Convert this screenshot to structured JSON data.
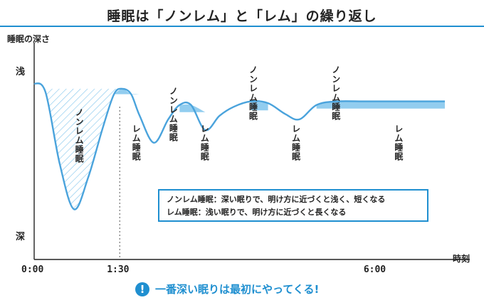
{
  "title": "睡眠は「ノンレム」と「レム」の繰り返し",
  "note": {
    "icon": "!",
    "text": "一番深い眠りは最初にやってくる!"
  },
  "legend": {
    "nonrem": "ノンレム睡眠：深い眠りで、明け方に近づくと浅く、短くなる",
    "rem": "レム睡眠：浅い眠りで、明け方に近づくと長くなる"
  },
  "colors": {
    "accent": "#1f8fd0",
    "rem_fill": "#7fc4ec",
    "curve": "#4aa3dc"
  },
  "chart_data": {
    "type": "line",
    "title": "睡眠は「ノンレム」と「レム」の繰り返し",
    "ylabel": "睡眠の深さ",
    "xlabel": "時刻",
    "y_top_label": "浅",
    "y_bottom_label": "深",
    "xticks": [
      {
        "label": "0:00",
        "hours": 0
      },
      {
        "label": "1:30",
        "hours": 1.5
      },
      {
        "label": "6:00",
        "hours": 6
      }
    ],
    "xlim": [
      0,
      7.2
    ],
    "ylim": [
      0,
      1
    ],
    "depth_curve": {
      "hours": [
        0,
        0.2,
        0.45,
        0.7,
        0.95,
        1.2,
        1.4,
        1.55,
        1.7,
        1.85,
        2.1,
        2.35,
        2.55,
        2.75,
        3.0,
        3.25,
        3.5,
        3.8,
        4.1,
        4.4,
        4.65,
        4.95,
        5.3,
        5.8,
        6.3,
        6.8,
        7.2
      ],
      "depth": [
        0.1,
        0.15,
        0.55,
        0.8,
        0.62,
        0.35,
        0.16,
        0.13,
        0.16,
        0.28,
        0.43,
        0.3,
        0.22,
        0.22,
        0.36,
        0.28,
        0.23,
        0.2,
        0.21,
        0.27,
        0.3,
        0.22,
        0.2,
        0.2,
        0.2,
        0.2,
        0.2
      ]
    },
    "annotations": [
      {
        "text": "ノンレム睡眠",
        "hours": 0.8
      },
      {
        "text": "レム睡眠",
        "hours": 1.8
      },
      {
        "text": "ノンレム睡眠",
        "hours": 2.45
      },
      {
        "text": "レム睡眠",
        "hours": 3.0
      },
      {
        "text": "ノンレム睡眠",
        "hours": 3.85
      },
      {
        "text": "レム睡眠",
        "hours": 4.6
      },
      {
        "text": "ノンレム睡眠",
        "hours": 5.3
      },
      {
        "text": "レム睡眠",
        "hours": 6.4
      }
    ]
  }
}
